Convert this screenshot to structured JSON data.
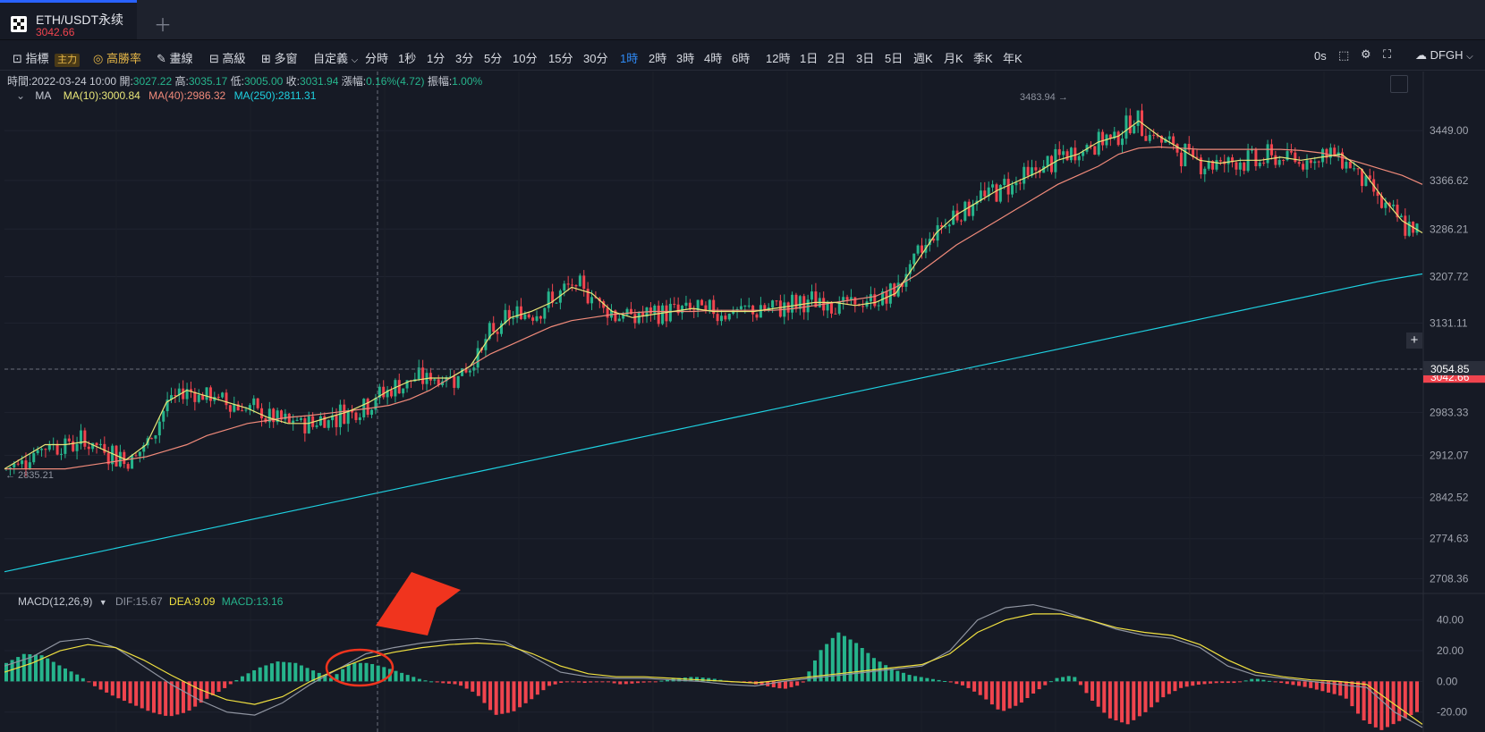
{
  "tab": {
    "title": "ETH/USDT永续",
    "price": "3042.66",
    "add_icon": "plus-icon"
  },
  "toolbar": {
    "items": [
      {
        "label": "指標",
        "icon": "chart-icon"
      },
      {
        "label": "主力",
        "badge": true
      },
      {
        "label": "高勝率",
        "icon": "target-icon"
      },
      {
        "label": "畫線",
        "icon": "pencil-icon"
      },
      {
        "label": "高級",
        "icon": "box-icon"
      },
      {
        "label": "多窗",
        "icon": "grid-icon"
      },
      {
        "label": "自定義",
        "icon": "chevron-down-icon"
      }
    ],
    "intervals": [
      "分時",
      "1秒",
      "1分",
      "3分",
      "5分",
      "10分",
      "15分",
      "30分",
      "1時",
      "2時",
      "3時",
      "4時",
      "6時",
      "12時",
      "1日",
      "2日",
      "3日",
      "5日",
      "週K",
      "月K",
      "季K",
      "年K"
    ],
    "active_interval": "1時",
    "right": {
      "timer": "0s",
      "user": "DFGH"
    }
  },
  "legend": {
    "time_label": "時間:",
    "time": "2022-03-24 10:00",
    "open_label": "開:",
    "open": "3027.22",
    "high_label": "高:",
    "high": "3035.17",
    "low_label": "低:",
    "low": "3005.00",
    "close_label": "收:",
    "close": "3031.94",
    "change_label": "漲幅:",
    "change": "0.16%(4.72)",
    "amp_label": "振幅:",
    "amp": "1.00%"
  },
  "ma_legend": {
    "label": "MA",
    "items": [
      {
        "text": "MA(10):3000.84",
        "color": "#e8e678"
      },
      {
        "text": "MA(40):2986.32",
        "color": "#f08a7a"
      },
      {
        "text": "MA(250):2811.31",
        "color": "#1ed0e0"
      }
    ]
  },
  "macd_legend": {
    "label": "MACD(12,26,9)",
    "dif": "DIF:15.67",
    "dea": "DEA:9.09",
    "macd": "MACD:13.16"
  },
  "chart_data": {
    "type": "candlestick",
    "price_axis": {
      "ticks": [
        3449.0,
        3366.62,
        3286.21,
        3207.72,
        3131.11,
        3054.85,
        2983.33,
        2912.07,
        2842.52,
        2774.63,
        2708.36
      ],
      "ylim": [
        2690,
        3520
      ]
    },
    "current_price": "3042.66",
    "crosshair_price": "3054.85",
    "annotations": {
      "high": "3483.94",
      "low": "2835.21"
    },
    "ma10": [
      2890,
      2910,
      2930,
      2930,
      2935,
      2920,
      2905,
      2930,
      3000,
      3020,
      3010,
      3000,
      2990,
      2975,
      2965,
      2965,
      2975,
      2985,
      3000,
      3020,
      3035,
      3040,
      3040,
      3060,
      3110,
      3140,
      3150,
      3165,
      3190,
      3180,
      3150,
      3140,
      3145,
      3150,
      3155,
      3150,
      3150,
      3150,
      3155,
      3160,
      3165,
      3165,
      3160,
      3165,
      3180,
      3230,
      3280,
      3310,
      3330,
      3350,
      3365,
      3380,
      3400,
      3410,
      3430,
      3440,
      3465,
      3440,
      3420,
      3400,
      3395,
      3400,
      3400,
      3405,
      3400,
      3405,
      3410,
      3385,
      3340,
      3300,
      3280
    ],
    "ma40": [
      2890,
      2890,
      2890,
      2890,
      2895,
      2900,
      2905,
      2910,
      2920,
      2930,
      2945,
      2955,
      2965,
      2970,
      2975,
      2978,
      2982,
      2986,
      2990,
      2995,
      3005,
      3020,
      3040,
      3060,
      3080,
      3095,
      3110,
      3125,
      3135,
      3140,
      3145,
      3148,
      3150,
      3150,
      3150,
      3152,
      3152,
      3152,
      3152,
      3155,
      3160,
      3165,
      3170,
      3175,
      3190,
      3210,
      3235,
      3260,
      3280,
      3300,
      3320,
      3340,
      3360,
      3375,
      3390,
      3410,
      3420,
      3422,
      3420,
      3418,
      3418,
      3418,
      3418,
      3418,
      3416,
      3412,
      3405,
      3395,
      3385,
      3375,
      3360
    ],
    "ma250": [
      2720,
      2735,
      2750,
      2765,
      2780,
      2795,
      2810,
      2825,
      2840,
      2855,
      2870,
      2885,
      2900,
      2915,
      2930,
      2945,
      2960,
      2975,
      2990,
      3005,
      3020,
      3035,
      3050,
      3065,
      3080,
      3095,
      3110,
      3125,
      3140,
      3155,
      3170,
      3185,
      3200,
      3212
    ],
    "macd": {
      "axis_ticks": [
        40.0,
        20.0,
        0.0,
        -20.0
      ],
      "ylim": [
        -33,
        55
      ],
      "hist": [
        12,
        18,
        17,
        10,
        4,
        -4,
        -10,
        -15,
        -20,
        -23,
        -20,
        -12,
        -5,
        3,
        9,
        13,
        12,
        7,
        2,
        12,
        12,
        9,
        5,
        1,
        -1,
        -2,
        -8,
        -22,
        -20,
        -12,
        -3,
        0,
        -1,
        0,
        -2,
        -1,
        0,
        2,
        3,
        2,
        0,
        -1,
        -3,
        -5,
        -2,
        20,
        32,
        25,
        15,
        8,
        4,
        2,
        0,
        -3,
        -10,
        -20,
        -15,
        -6,
        2,
        4,
        -12,
        -24,
        -28,
        -20,
        -10,
        -4,
        -2,
        -1,
        -1,
        2,
        0,
        -2,
        -4,
        -7,
        -10,
        -25,
        -32,
        -26,
        -20
      ],
      "dif": [
        10,
        16,
        26,
        28,
        22,
        10,
        -2,
        -12,
        -20,
        -22,
        -14,
        -2,
        8,
        18,
        22,
        25,
        27,
        28,
        26,
        16,
        6,
        3,
        2,
        2,
        1,
        0,
        -2,
        -3,
        0,
        2,
        4,
        6,
        8,
        10,
        20,
        40,
        48,
        50,
        46,
        40,
        34,
        30,
        28,
        22,
        10,
        4,
        2,
        0,
        -2,
        -4,
        -20,
        -30
      ],
      "dea": [
        6,
        12,
        20,
        24,
        22,
        14,
        4,
        -5,
        -12,
        -15,
        -10,
        0,
        8,
        15,
        19,
        22,
        24,
        25,
        24,
        18,
        10,
        5,
        3,
        3,
        2,
        1,
        0,
        -1,
        1,
        3,
        5,
        7,
        9,
        11,
        18,
        32,
        40,
        44,
        44,
        40,
        35,
        32,
        30,
        24,
        14,
        6,
        3,
        1,
        0,
        -2,
        -15,
        -28
      ]
    }
  }
}
